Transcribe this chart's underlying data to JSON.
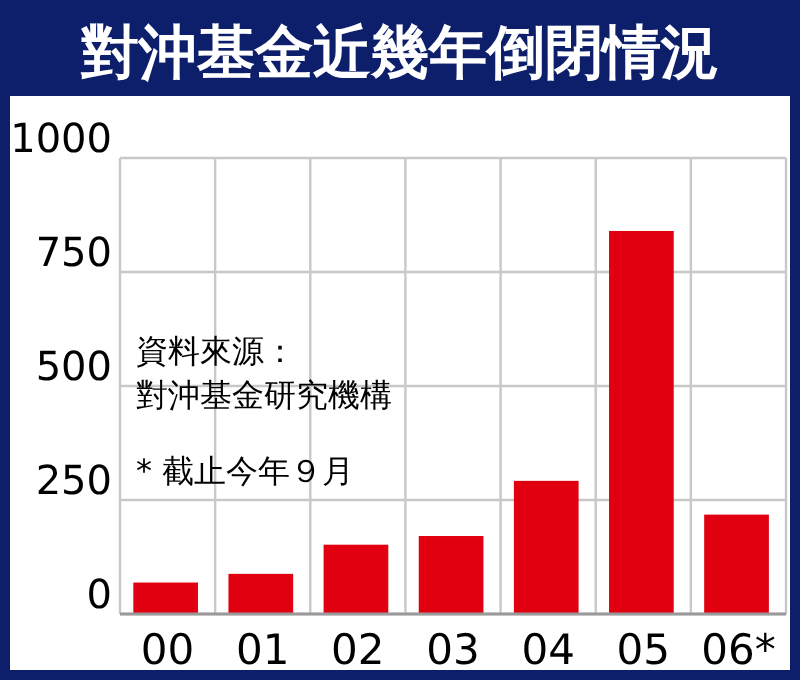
{
  "chart_data": {
    "type": "bar",
    "title": "對沖基金近幾年倒閉情況",
    "categories": [
      "00",
      "01",
      "02",
      "03",
      "04",
      "05",
      "06*"
    ],
    "values": [
      69,
      88,
      152,
      171,
      292,
      840,
      218
    ],
    "color": "#e0000f",
    "ylim": [
      0,
      1000
    ],
    "yticks": [
      0,
      250,
      500,
      750,
      1000
    ],
    "grid": true,
    "annotations": [
      "資料來源：",
      "對沖基金研究機構",
      "* 截止今年９月"
    ]
  }
}
